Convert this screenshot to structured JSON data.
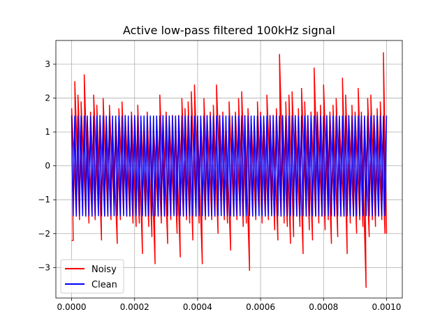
{
  "chart_data": {
    "type": "line",
    "title": "Active low-pass filtered 100kHz signal",
    "xlabel": "",
    "ylabel": "",
    "xlim": [
      -5e-05,
      0.00105
    ],
    "ylim": [
      -3.9,
      3.7
    ],
    "x_ticks": [
      0.0,
      0.0002,
      0.0004,
      0.0006,
      0.0008,
      0.001
    ],
    "x_tick_labels": [
      "0.0000",
      "0.0002",
      "0.0004",
      "0.0006",
      "0.0008",
      "0.0010"
    ],
    "y_ticks": [
      -3,
      -2,
      -1,
      0,
      1,
      2,
      3
    ],
    "y_tick_labels": [
      "−3",
      "−2",
      "−1",
      "0",
      "1",
      "2",
      "3"
    ],
    "grid": true,
    "legend_position": "lower-left",
    "signal": {
      "frequency_hz": 100000,
      "x_start": 0.0,
      "x_end": 0.001,
      "cycles": 100
    },
    "series": [
      {
        "name": "Noisy",
        "color": "#ff0000",
        "peak_values": [
          1.7,
          2.5,
          2.1,
          1.9,
          2.7,
          1.3,
          1.6,
          2.1,
          1.8,
          1.5,
          2.0,
          1.4,
          1.8,
          1.2,
          1.4,
          1.7,
          1.9,
          1.5,
          1.3,
          1.6,
          1.5,
          1.8,
          1.4,
          1.3,
          1.6,
          1.3,
          1.2,
          1.4,
          2.1,
          1.5,
          1.6,
          1.4,
          1.5,
          1.4,
          1.5,
          2.0,
          1.7,
          1.9,
          2.2,
          2.4,
          1.3,
          1.4,
          2.0,
          1.5,
          1.6,
          1.8,
          2.4,
          1.5,
          1.6,
          1.3,
          1.9,
          1.4,
          1.6,
          2.0,
          2.2,
          1.5,
          1.7,
          1.4,
          1.3,
          1.9,
          1.6,
          1.4,
          2.1,
          1.5,
          1.5,
          1.7,
          3.3,
          1.5,
          1.9,
          2.1,
          2.2,
          1.5,
          1.7,
          2.3,
          1.9,
          1.5,
          1.6,
          2.9,
          1.6,
          1.8,
          2.4,
          1.5,
          1.6,
          1.8,
          2.0,
          1.4,
          2.6,
          2.1,
          1.5,
          1.8,
          1.6,
          2.3,
          1.6,
          1.4,
          2.0,
          2.1,
          1.5,
          1.7,
          1.9,
          3.35
        ],
        "trough_values": [
          -2.2,
          -1.5,
          -1.6,
          -1.4,
          -1.5,
          -1.7,
          -1.5,
          -1.6,
          -1.4,
          -2.2,
          -1.5,
          -1.5,
          -1.6,
          -1.3,
          -2.3,
          -1.6,
          -1.4,
          -1.5,
          -1.5,
          -1.7,
          -1.8,
          -1.7,
          -2.6,
          -1.5,
          -1.8,
          -2.1,
          -2.9,
          -1.5,
          -1.7,
          -1.5,
          -2.3,
          -1.6,
          -1.4,
          -2.0,
          -2.7,
          -1.5,
          -1.6,
          -1.7,
          -2.2,
          -1.5,
          -1.7,
          -2.9,
          -1.6,
          -1.5,
          -1.6,
          -1.5,
          -2.0,
          -1.4,
          -1.6,
          -1.7,
          -2.5,
          -1.5,
          -1.6,
          -1.4,
          -1.8,
          -1.7,
          -3.1,
          -1.5,
          -1.6,
          -1.4,
          -1.7,
          -1.5,
          -1.6,
          -1.4,
          -1.9,
          -2.2,
          -1.5,
          -1.7,
          -1.8,
          -2.3,
          -2.1,
          -1.5,
          -1.8,
          -2.6,
          -1.5,
          -1.9,
          -2.2,
          -1.5,
          -1.7,
          -1.5,
          -1.9,
          -1.6,
          -2.3,
          -1.5,
          -2.1,
          -1.5,
          -1.5,
          -2.6,
          -1.7,
          -1.5,
          -2.0,
          -1.6,
          -1.8,
          -3.6,
          -2.1,
          -1.6,
          -1.8,
          -1.5,
          -1.6,
          -2.0
        ],
        "line_width": 1.5
      },
      {
        "name": "Clean",
        "color": "#0000ff",
        "amplitude": 1.5,
        "line_width": 1.5
      }
    ]
  }
}
